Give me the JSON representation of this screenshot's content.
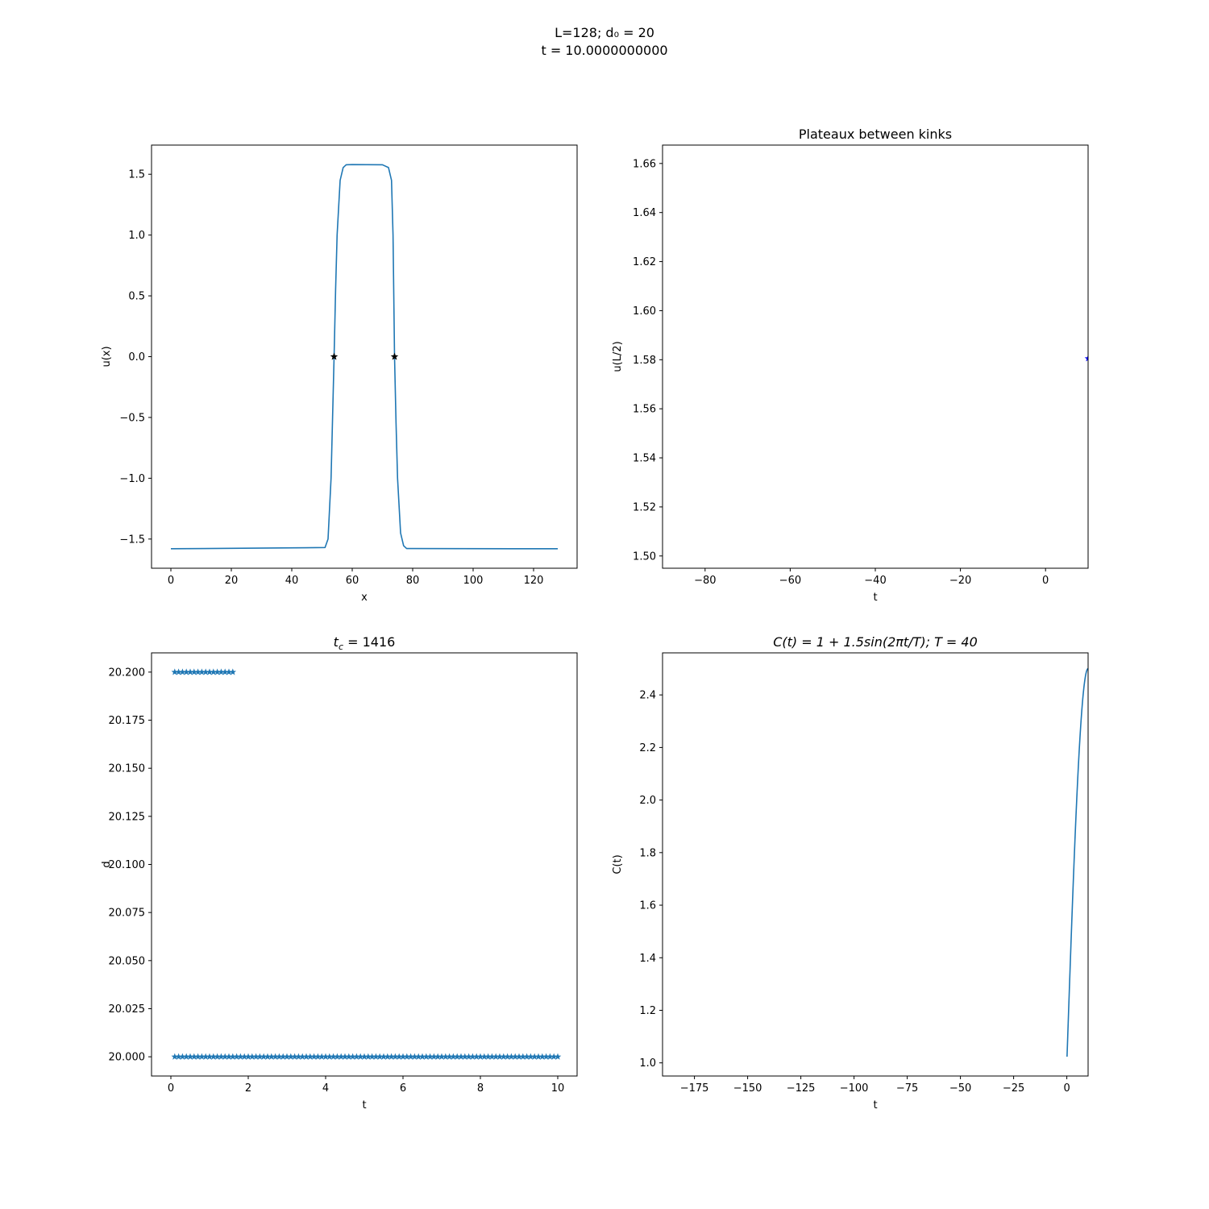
{
  "figure": {
    "suptitle_line1": "L=128; d₀ = 20",
    "suptitle_line2": "t = 10.0000000000"
  },
  "chart_data": [
    {
      "id": "profile",
      "type": "line",
      "title": "",
      "xlabel": "x",
      "ylabel": "u(x)",
      "xlim": [
        -6.4,
        134.4
      ],
      "ylim": [
        -1.74,
        1.74
      ],
      "xticks": [
        0,
        20,
        40,
        60,
        80,
        100,
        120
      ],
      "yticks": [
        -1.5,
        -1.0,
        -0.5,
        0.0,
        0.5,
        1.0,
        1.5
      ],
      "ytick_labels": [
        "−1.5",
        "−1.0",
        "−0.5",
        "0.0",
        "0.5",
        "1.0",
        "1.5"
      ],
      "color": "#1f77b4",
      "series": [
        {
          "x": [
            0,
            51,
            52,
            53,
            53.5,
            54,
            54.5,
            55,
            56,
            57,
            58,
            60,
            70,
            72,
            73,
            73.5,
            74,
            74.5,
            75,
            76,
            77,
            78,
            128
          ],
          "y": [
            -1.58,
            -1.57,
            -1.5,
            -1.0,
            -0.5,
            0.0,
            0.55,
            1.0,
            1.45,
            1.555,
            1.578,
            1.58,
            1.578,
            1.555,
            1.45,
            1.0,
            0.0,
            -0.55,
            -1.0,
            -1.45,
            -1.555,
            -1.578,
            -1.58
          ]
        }
      ],
      "markers": {
        "symbol": "star",
        "color": "#000000",
        "points": [
          [
            54,
            0.0
          ],
          [
            74,
            0.0
          ]
        ]
      }
    },
    {
      "id": "plateaux",
      "type": "scatter",
      "title": "Plateaux between kinks",
      "xlabel": "t",
      "ylabel": "u(L/2)",
      "xlim": [
        -90,
        10
      ],
      "ylim": [
        1.495,
        1.6675
      ],
      "xticks": [
        -80,
        -60,
        -40,
        -20,
        0
      ],
      "xtick_labels": [
        "−80",
        "−60",
        "−40",
        "−20",
        "0"
      ],
      "yticks": [
        1.5,
        1.52,
        1.54,
        1.56,
        1.58,
        1.6,
        1.62,
        1.64,
        1.66
      ],
      "ytick_labels": [
        "1.50",
        "1.52",
        "1.54",
        "1.56",
        "1.58",
        "1.60",
        "1.62",
        "1.64",
        "1.66"
      ],
      "color": "#0000ff",
      "points": [
        [
          10,
          1.5805
        ]
      ]
    },
    {
      "id": "distance",
      "type": "scatter",
      "title": "t_c = 1416",
      "title_main": "t",
      "title_sub": "c",
      "title_rest": " = 1416",
      "xlabel": "t",
      "ylabel": "d",
      "xlim": [
        -0.5,
        10.5
      ],
      "ylim": [
        19.99,
        20.21
      ],
      "xticks": [
        0,
        2,
        4,
        6,
        8,
        10
      ],
      "yticks": [
        20.0,
        20.025,
        20.05,
        20.075,
        20.1,
        20.125,
        20.15,
        20.175,
        20.2
      ],
      "ytick_labels": [
        "20.000",
        "20.025",
        "20.050",
        "20.075",
        "20.100",
        "20.125",
        "20.150",
        "20.175",
        "20.200"
      ],
      "color": "#1f77b4",
      "series": [
        {
          "name": "",
          "t_start": 0.1,
          "t_end": 1.6,
          "step": 0.1,
          "d_values": [
            20.0,
            20.2
          ]
        },
        {
          "name": "",
          "t_start": 1.7,
          "t_end": 10.0,
          "step": 0.1,
          "d_values": [
            20.0
          ]
        }
      ]
    },
    {
      "id": "forcing",
      "type": "line",
      "title": "C(t) = 1 + 1.5sin(2πt/T); T = 40",
      "xlabel": "t",
      "ylabel": "C(t)",
      "xlim": [
        -190,
        10
      ],
      "ylim": [
        0.95,
        2.56
      ],
      "xticks": [
        -175,
        -150,
        -125,
        -100,
        -75,
        -50,
        -25,
        0
      ],
      "xtick_labels": [
        "−175",
        "−150",
        "−125",
        "−100",
        "−75",
        "−50",
        "−25",
        "0"
      ],
      "yticks": [
        1.0,
        1.2,
        1.4,
        1.6,
        1.8,
        2.0,
        2.2,
        2.4
      ],
      "ytick_labels": [
        "1.0",
        "1.2",
        "1.4",
        "1.6",
        "1.8",
        "2.0",
        "2.2",
        "2.4"
      ],
      "color": "#1f77b4",
      "function": {
        "amplitude": 1.5,
        "offset": 1.0,
        "period": 40,
        "t_start": 0.1,
        "t_end": 10
      }
    }
  ]
}
